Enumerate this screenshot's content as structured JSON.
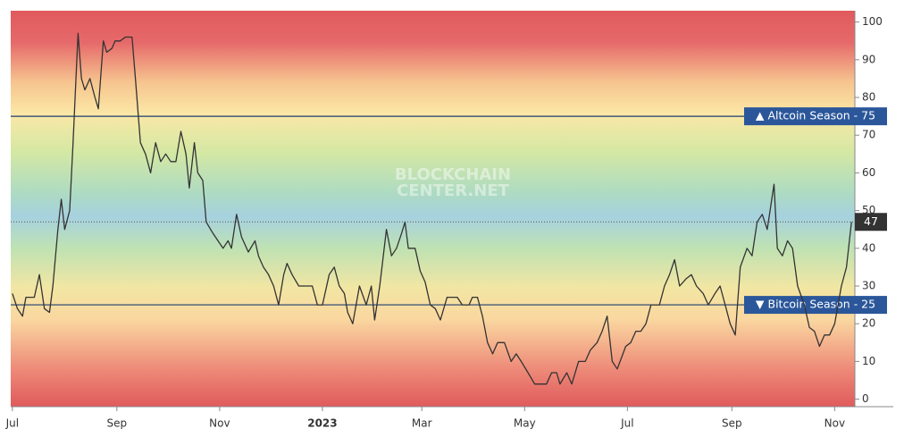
{
  "chart_data": {
    "type": "line",
    "watermark": [
      "BLOCKCHAIN",
      "CENTER.NET"
    ],
    "x": [
      0,
      3,
      6,
      8,
      13,
      16,
      19,
      22,
      24,
      27,
      29,
      31,
      34,
      36,
      38,
      39,
      41,
      43,
      46,
      49,
      51,
      54,
      56,
      59,
      61,
      64,
      67,
      71,
      73,
      76,
      79,
      82,
      85,
      88,
      91,
      94,
      97,
      100,
      103,
      105,
      108,
      110,
      113,
      115,
      119,
      122,
      125,
      128,
      130,
      133,
      136,
      140,
      144,
      146,
      149,
      152,
      155,
      158,
      161,
      163,
      166,
      170,
      174,
      178,
      181,
      184,
      188,
      191,
      194,
      197,
      199,
      202,
      206,
      210,
      213,
      215,
      218,
      222,
      225,
      228,
      231,
      233,
      235,
      239,
      242,
      245,
      248,
      251,
      254,
      258,
      260,
      264,
      267,
      271,
      273,
      276,
      279,
      282,
      285,
      288,
      292,
      296,
      299,
      302,
      306,
      310,
      314,
      317,
      320,
      323,
      325,
      329,
      332,
      336,
      340,
      343,
      347,
      350,
      353,
      356,
      359,
      364,
      367,
      370,
      373,
      376,
      379,
      384,
      387,
      390,
      393,
      396,
      400,
      403,
      406,
      410,
      413,
      417,
      420,
      423,
      426,
      429,
      432,
      436,
      439,
      442,
      445,
      448,
      452,
      454,
      457,
      460,
      463,
      466,
      470,
      473,
      476,
      479,
      482,
      485,
      488,
      492,
      495,
      498
    ],
    "series": [
      {
        "color": "#333333",
        "values": [
          28,
          24,
          22,
          27,
          27,
          33,
          24,
          23,
          30,
          45,
          53,
          45,
          50,
          68,
          88,
          97,
          85,
          82,
          85,
          80,
          77,
          95,
          92,
          93,
          95,
          95,
          96,
          96,
          85,
          68,
          65,
          60,
          68,
          63,
          65,
          63,
          63,
          71,
          65,
          56,
          68,
          60,
          58,
          47,
          44,
          42,
          40,
          42,
          40,
          49,
          43,
          39,
          42,
          38,
          35,
          33,
          30,
          25,
          33,
          36,
          33,
          30,
          30,
          30,
          25,
          25,
          33,
          35,
          30,
          28,
          23,
          20,
          30,
          25,
          30,
          21,
          30,
          45,
          38,
          40,
          44,
          47,
          40,
          40,
          34,
          31,
          25,
          24,
          21,
          27,
          27,
          27,
          25,
          25,
          27,
          27,
          22,
          15,
          12,
          15,
          15,
          10,
          12,
          10,
          7,
          4,
          4,
          4,
          7,
          7,
          4,
          7,
          4,
          10,
          10,
          13,
          15,
          18,
          22,
          10,
          8,
          14,
          15,
          18,
          18,
          20,
          25,
          25,
          30,
          33,
          37,
          30,
          32,
          33,
          30,
          28,
          25,
          28,
          30,
          25,
          20,
          17,
          35,
          40,
          38,
          47,
          49,
          45,
          57,
          40,
          38,
          42,
          40,
          30,
          25,
          19,
          18,
          14,
          17,
          17,
          20,
          30,
          35,
          47
        ]
      }
    ],
    "xlim": [
      -1,
      500
    ],
    "xticks": [
      {
        "value": 0,
        "label": "Jul"
      },
      {
        "value": 62,
        "label": "Sep"
      },
      {
        "value": 123,
        "label": "Nov"
      },
      {
        "value": 184,
        "label": "2023"
      },
      {
        "value": 243,
        "label": "Mar"
      },
      {
        "value": 304,
        "label": "May"
      },
      {
        "value": 365,
        "label": "Jul"
      },
      {
        "value": 427,
        "label": "Sep"
      },
      {
        "value": 488,
        "label": "Nov"
      }
    ],
    "ylim": [
      -2,
      103
    ],
    "yticks": [
      0,
      10,
      20,
      30,
      40,
      50,
      60,
      70,
      80,
      90,
      100
    ],
    "levels": [
      {
        "label": "▲ Altcoin Season - 75",
        "value": 75,
        "color": "#2b579a"
      },
      {
        "label": "▼ Bitcoin Season - 25",
        "value": 25,
        "color": "#2b579a"
      }
    ]
  }
}
